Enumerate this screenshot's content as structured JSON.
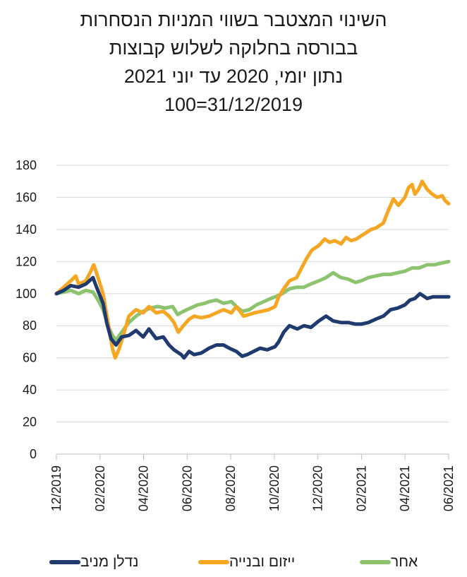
{
  "title_lines": [
    "השינוי המצטבר בשווי המניות הנסחרות",
    "בבורסה בחלוקה לשלוש קבוצות",
    "נתון יומי,  2020 עד יוני 2021",
    "100=31/12/2019"
  ],
  "colors": {
    "nadlan": "#1f3a6e",
    "yizum": "#f5a623",
    "acher": "#8cc36e",
    "grid": "#d9d9d9"
  },
  "chart_data": {
    "type": "line",
    "title": "השינוי המצטבר בשווי המניות הנסחרות בבורסה בחלוקה לשלוש קבוצות",
    "subtitle": "נתון יומי,  2020 עד יוני 2021 | 100=31/12/2019",
    "xlabel": "",
    "ylabel": "",
    "ylim": [
      0,
      180
    ],
    "yticks": [
      0,
      20,
      40,
      60,
      80,
      100,
      120,
      140,
      160,
      180
    ],
    "x_tick_labels": [
      "12/2019",
      "02/2020",
      "04/2020",
      "06/2020",
      "08/2020",
      "10/2020",
      "12/2020",
      "02/2021",
      "04/2021",
      "06/2021"
    ],
    "grid": true,
    "legend": "bottom",
    "series": [
      {
        "name": "נדלן מניב",
        "key": "nadlan",
        "points": [
          [
            "2019-12-31",
            100
          ],
          [
            "2020-01-10",
            102
          ],
          [
            "2020-01-20",
            105
          ],
          [
            "2020-01-31",
            104
          ],
          [
            "2020-02-10",
            106
          ],
          [
            "2020-02-20",
            110
          ],
          [
            "2020-02-25",
            104
          ],
          [
            "2020-03-05",
            94
          ],
          [
            "2020-03-10",
            82
          ],
          [
            "2020-03-16",
            72
          ],
          [
            "2020-03-23",
            68
          ],
          [
            "2020-03-31",
            73
          ],
          [
            "2020-04-10",
            74
          ],
          [
            "2020-04-20",
            77
          ],
          [
            "2020-04-30",
            73
          ],
          [
            "2020-05-08",
            78
          ],
          [
            "2020-05-18",
            72
          ],
          [
            "2020-05-28",
            73
          ],
          [
            "2020-06-05",
            68
          ],
          [
            "2020-06-12",
            65
          ],
          [
            "2020-06-22",
            62
          ],
          [
            "2020-06-26",
            60
          ],
          [
            "2020-07-03",
            64
          ],
          [
            "2020-07-10",
            62
          ],
          [
            "2020-07-20",
            63
          ],
          [
            "2020-07-31",
            66
          ],
          [
            "2020-08-10",
            68
          ],
          [
            "2020-08-20",
            68
          ],
          [
            "2020-08-28",
            66
          ],
          [
            "2020-09-07",
            64
          ],
          [
            "2020-09-15",
            61
          ],
          [
            "2020-09-22",
            62
          ],
          [
            "2020-10-01",
            64
          ],
          [
            "2020-10-10",
            66
          ],
          [
            "2020-10-20",
            65
          ],
          [
            "2020-10-31",
            67
          ],
          [
            "2020-11-05",
            70
          ],
          [
            "2020-11-12",
            76
          ],
          [
            "2020-11-20",
            80
          ],
          [
            "2020-12-01",
            78
          ],
          [
            "2020-12-10",
            80
          ],
          [
            "2020-12-20",
            79
          ],
          [
            "2020-12-31",
            83
          ],
          [
            "2021-01-10",
            86
          ],
          [
            "2021-01-20",
            83
          ],
          [
            "2021-01-31",
            82
          ],
          [
            "2021-02-10",
            82
          ],
          [
            "2021-02-20",
            81
          ],
          [
            "2021-02-28",
            81
          ],
          [
            "2021-03-10",
            82
          ],
          [
            "2021-03-20",
            84
          ],
          [
            "2021-03-31",
            86
          ],
          [
            "2021-04-10",
            90
          ],
          [
            "2021-04-20",
            91
          ],
          [
            "2021-04-30",
            93
          ],
          [
            "2021-05-07",
            96
          ],
          [
            "2021-05-14",
            97
          ],
          [
            "2021-05-21",
            100
          ],
          [
            "2021-05-31",
            97
          ],
          [
            "2021-06-08",
            98
          ],
          [
            "2021-06-15",
            98
          ],
          [
            "2021-06-22",
            98
          ],
          [
            "2021-06-30",
            98
          ]
        ]
      },
      {
        "name": "ייזום ובנייה",
        "key": "yizum",
        "points": [
          [
            "2019-12-31",
            100
          ],
          [
            "2020-01-10",
            104
          ],
          [
            "2020-01-20",
            108
          ],
          [
            "2020-01-27",
            111
          ],
          [
            "2020-01-31",
            106
          ],
          [
            "2020-02-10",
            108
          ],
          [
            "2020-02-17",
            114
          ],
          [
            "2020-02-21",
            118
          ],
          [
            "2020-02-27",
            110
          ],
          [
            "2020-03-05",
            100
          ],
          [
            "2020-03-12",
            82
          ],
          [
            "2020-03-18",
            66
          ],
          [
            "2020-03-22",
            60
          ],
          [
            "2020-03-27",
            65
          ],
          [
            "2020-04-03",
            75
          ],
          [
            "2020-04-10",
            86
          ],
          [
            "2020-04-20",
            90
          ],
          [
            "2020-04-30",
            88
          ],
          [
            "2020-05-08",
            92
          ],
          [
            "2020-05-18",
            88
          ],
          [
            "2020-05-28",
            89
          ],
          [
            "2020-06-05",
            86
          ],
          [
            "2020-06-12",
            82
          ],
          [
            "2020-06-18",
            76
          ],
          [
            "2020-06-25",
            80
          ],
          [
            "2020-07-03",
            84
          ],
          [
            "2020-07-10",
            86
          ],
          [
            "2020-07-20",
            85
          ],
          [
            "2020-07-31",
            86
          ],
          [
            "2020-08-10",
            88
          ],
          [
            "2020-08-20",
            90
          ],
          [
            "2020-08-31",
            88
          ],
          [
            "2020-09-07",
            92
          ],
          [
            "2020-09-17",
            86
          ],
          [
            "2020-09-25",
            87
          ],
          [
            "2020-10-02",
            88
          ],
          [
            "2020-10-12",
            89
          ],
          [
            "2020-10-22",
            90
          ],
          [
            "2020-10-31",
            92
          ],
          [
            "2020-11-05",
            98
          ],
          [
            "2020-11-12",
            103
          ],
          [
            "2020-11-20",
            108
          ],
          [
            "2020-11-30",
            110
          ],
          [
            "2020-12-07",
            116
          ],
          [
            "2020-12-14",
            122
          ],
          [
            "2020-12-21",
            127
          ],
          [
            "2020-12-31",
            130
          ],
          [
            "2021-01-08",
            134
          ],
          [
            "2021-01-15",
            132
          ],
          [
            "2021-01-22",
            133
          ],
          [
            "2021-01-31",
            131
          ],
          [
            "2021-02-07",
            135
          ],
          [
            "2021-02-14",
            133
          ],
          [
            "2021-02-21",
            134
          ],
          [
            "2021-02-28",
            136
          ],
          [
            "2021-03-07",
            138
          ],
          [
            "2021-03-14",
            140
          ],
          [
            "2021-03-21",
            141
          ],
          [
            "2021-03-31",
            144
          ],
          [
            "2021-04-07",
            152
          ],
          [
            "2021-04-14",
            159
          ],
          [
            "2021-04-21",
            155
          ],
          [
            "2021-04-30",
            160
          ],
          [
            "2021-05-05",
            166
          ],
          [
            "2021-05-10",
            168
          ],
          [
            "2021-05-14",
            162
          ],
          [
            "2021-05-19",
            165
          ],
          [
            "2021-05-24",
            170
          ],
          [
            "2021-05-31",
            165
          ],
          [
            "2021-06-07",
            162
          ],
          [
            "2021-06-14",
            160
          ],
          [
            "2021-06-21",
            161
          ],
          [
            "2021-06-25",
            158
          ],
          [
            "2021-06-30",
            156
          ]
        ]
      },
      {
        "name": "אחר",
        "key": "acher",
        "points": [
          [
            "2019-12-31",
            100
          ],
          [
            "2020-01-10",
            101
          ],
          [
            "2020-01-20",
            102
          ],
          [
            "2020-01-31",
            100
          ],
          [
            "2020-02-10",
            102
          ],
          [
            "2020-02-20",
            101
          ],
          [
            "2020-02-27",
            96
          ],
          [
            "2020-03-05",
            90
          ],
          [
            "2020-03-12",
            80
          ],
          [
            "2020-03-18",
            74
          ],
          [
            "2020-03-23",
            71
          ],
          [
            "2020-03-31",
            76
          ],
          [
            "2020-04-10",
            82
          ],
          [
            "2020-04-20",
            86
          ],
          [
            "2020-04-30",
            89
          ],
          [
            "2020-05-10",
            91
          ],
          [
            "2020-05-20",
            92
          ],
          [
            "2020-05-31",
            91
          ],
          [
            "2020-06-10",
            92
          ],
          [
            "2020-06-17",
            87
          ],
          [
            "2020-06-25",
            89
          ],
          [
            "2020-07-05",
            91
          ],
          [
            "2020-07-15",
            93
          ],
          [
            "2020-07-25",
            94
          ],
          [
            "2020-07-31",
            95
          ],
          [
            "2020-08-10",
            96
          ],
          [
            "2020-08-20",
            94
          ],
          [
            "2020-08-31",
            95
          ],
          [
            "2020-09-07",
            92
          ],
          [
            "2020-09-15",
            89
          ],
          [
            "2020-09-25",
            90
          ],
          [
            "2020-10-05",
            93
          ],
          [
            "2020-10-15",
            95
          ],
          [
            "2020-10-25",
            97
          ],
          [
            "2020-10-31",
            98
          ],
          [
            "2020-11-10",
            100
          ],
          [
            "2020-11-20",
            103
          ],
          [
            "2020-11-30",
            104
          ],
          [
            "2020-12-10",
            104
          ],
          [
            "2020-12-20",
            106
          ],
          [
            "2020-12-31",
            108
          ],
          [
            "2021-01-10",
            110
          ],
          [
            "2021-01-20",
            113
          ],
          [
            "2021-01-31",
            110
          ],
          [
            "2021-02-10",
            109
          ],
          [
            "2021-02-20",
            107
          ],
          [
            "2021-02-28",
            108
          ],
          [
            "2021-03-10",
            110
          ],
          [
            "2021-03-20",
            111
          ],
          [
            "2021-03-31",
            112
          ],
          [
            "2021-04-10",
            112
          ],
          [
            "2021-04-20",
            113
          ],
          [
            "2021-04-30",
            114
          ],
          [
            "2021-05-10",
            116
          ],
          [
            "2021-05-20",
            116
          ],
          [
            "2021-05-31",
            118
          ],
          [
            "2021-06-10",
            118
          ],
          [
            "2021-06-20",
            119
          ],
          [
            "2021-06-30",
            120
          ]
        ]
      }
    ]
  }
}
